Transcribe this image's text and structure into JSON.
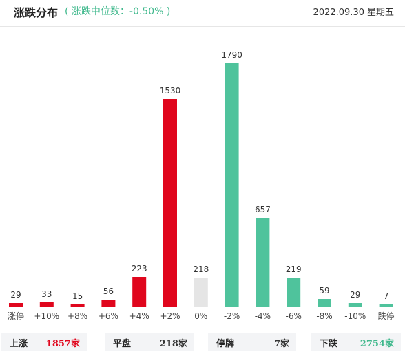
{
  "header": {
    "title": "涨跌分布",
    "subtitle": "( 涨跌中位数：-0.50% )",
    "date": "2022.09.30",
    "weekday": "星期五"
  },
  "colors": {
    "up": "#e0061d",
    "flat": "#e5e5e5",
    "down": "#4fc39c",
    "up_text": "#e0061d",
    "down_text": "#3fb88c"
  },
  "chart_data": {
    "type": "bar",
    "title": "涨跌分布",
    "categories": [
      "涨停",
      "+10%",
      "+8%",
      "+6%",
      "+4%",
      "+2%",
      "0%",
      "-2%",
      "-4%",
      "-6%",
      "-8%",
      "-10%",
      "跌停"
    ],
    "values": [
      29,
      33,
      15,
      56,
      223,
      1530,
      218,
      1790,
      657,
      219,
      59,
      29,
      7
    ],
    "groups": [
      "up",
      "up",
      "up",
      "up",
      "up",
      "up",
      "flat",
      "down",
      "down",
      "down",
      "down",
      "down",
      "down"
    ],
    "ylim": [
      0,
      1790
    ],
    "grid": false,
    "legend": "none"
  },
  "footer": {
    "up": {
      "label": "上涨",
      "value": "1857",
      "unit": "家"
    },
    "flat": {
      "label": "平盘",
      "value": "218",
      "unit": "家"
    },
    "suspended": {
      "label": "停牌",
      "value": "7",
      "unit": "家"
    },
    "down": {
      "label": "下跌",
      "value": "2754",
      "unit": "家"
    }
  }
}
